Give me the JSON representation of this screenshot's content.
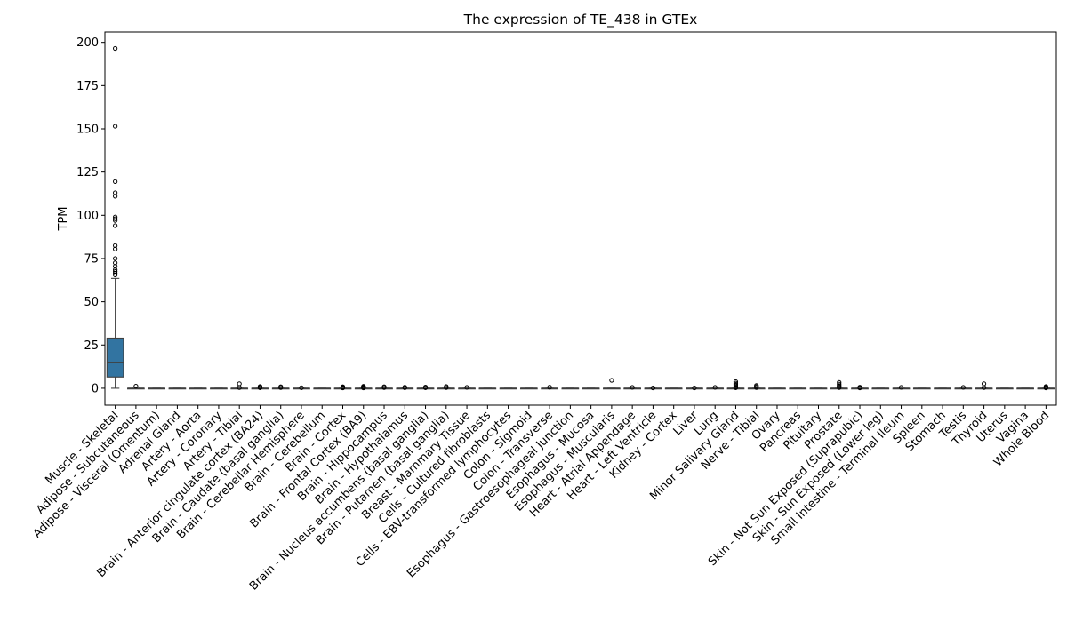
{
  "chart_data": {
    "type": "box",
    "title": "The expression of TE_438 in GTEx",
    "xlabel": "",
    "ylabel": "TPM",
    "ylim": [
      -9.8,
      206
    ],
    "yticks": [
      0,
      25,
      50,
      75,
      100,
      125,
      150,
      175,
      200
    ],
    "grid": false,
    "legend": "none",
    "box_color": "#3274a1",
    "categories": [
      "Muscle - Skeletal",
      "Adipose - Subcutaneous",
      "Adipose - Visceral (Omentum)",
      "Adrenal Gland",
      "Artery - Aorta",
      "Artery - Coronary",
      "Artery - Tibial",
      "Brain - Anterior cingulate cortex (BA24)",
      "Brain - Caudate (basal ganglia)",
      "Brain - Cerebellar Hemisphere",
      "Brain - Cerebellum",
      "Brain - Cortex",
      "Brain - Frontal Cortex (BA9)",
      "Brain - Hippocampus",
      "Brain - Hypothalamus",
      "Brain - Nucleus accumbens (basal ganglia)",
      "Brain - Putamen (basal ganglia)",
      "Breast - Mammary Tissue",
      "Cells - Cultured fibroblasts",
      "Cells - EBV-transformed lymphocytes",
      "Colon - Sigmoid",
      "Colon - Transverse",
      "Esophagus - Gastroesophageal Junction",
      "Esophagus - Mucosa",
      "Esophagus - Muscularis",
      "Heart - Atrial Appendage",
      "Heart - Left Ventricle",
      "Kidney - Cortex",
      "Liver",
      "Lung",
      "Minor Salivary Gland",
      "Nerve - Tibial",
      "Ovary",
      "Pancreas",
      "Pituitary",
      "Prostate",
      "Skin - Not Sun Exposed (Suprapubic)",
      "Skin - Sun Exposed (Lower leg)",
      "Small Intestine - Terminal Ileum",
      "Spleen",
      "Stomach",
      "Testis",
      "Thyroid",
      "Uterus",
      "Vagina",
      "Whole Blood"
    ],
    "boxes": [
      {
        "min": 0,
        "q1": 6.5,
        "median": 15,
        "q3": 29,
        "max": 63.5,
        "outliers": [
          65.5,
          66.5,
          67.5,
          68.5,
          70.5,
          72.5,
          75,
          80.5,
          82.5,
          94,
          97,
          98,
          99,
          111,
          113,
          119.5,
          151.5,
          196.5
        ]
      },
      {
        "min": 0,
        "q1": 0,
        "median": 0,
        "q3": 0,
        "max": 0,
        "outliers": [
          1.2
        ]
      },
      {
        "min": 0,
        "q1": 0,
        "median": 0,
        "q3": 0,
        "max": 0,
        "outliers": []
      },
      {
        "min": 0,
        "q1": 0,
        "median": 0,
        "q3": 0,
        "max": 0,
        "outliers": []
      },
      {
        "min": 0,
        "q1": 0,
        "median": 0,
        "q3": 0,
        "max": 0,
        "outliers": []
      },
      {
        "min": 0,
        "q1": 0,
        "median": 0,
        "q3": 0,
        "max": 0,
        "outliers": []
      },
      {
        "min": 0,
        "q1": 0,
        "median": 0,
        "q3": 0,
        "max": 0,
        "outliers": [
          0.4,
          2.6
        ]
      },
      {
        "min": 0,
        "q1": 0,
        "median": 0,
        "q3": 0,
        "max": 0,
        "outliers": [
          0.3,
          0.6,
          1.0
        ]
      },
      {
        "min": 0,
        "q1": 0,
        "median": 0,
        "q3": 0,
        "max": 0,
        "outliers": [
          0.4,
          0.9
        ]
      },
      {
        "min": 0,
        "q1": 0,
        "median": 0,
        "q3": 0,
        "max": 0,
        "outliers": [
          0.3
        ]
      },
      {
        "min": 0,
        "q1": 0,
        "median": 0,
        "q3": 0,
        "max": 0,
        "outliers": []
      },
      {
        "min": 0,
        "q1": 0,
        "median": 0,
        "q3": 0,
        "max": 0,
        "outliers": [
          0.2,
          0.5,
          0.9
        ]
      },
      {
        "min": 0,
        "q1": 0,
        "median": 0,
        "q3": 0,
        "max": 0,
        "outliers": [
          0.2,
          0.5,
          0.8,
          1.1
        ]
      },
      {
        "min": 0,
        "q1": 0,
        "median": 0,
        "q3": 0,
        "max": 0,
        "outliers": [
          0.4,
          0.9
        ]
      },
      {
        "min": 0,
        "q1": 0,
        "median": 0,
        "q3": 0,
        "max": 0,
        "outliers": [
          0.3,
          0.6
        ]
      },
      {
        "min": 0,
        "q1": 0,
        "median": 0,
        "q3": 0,
        "max": 0,
        "outliers": [
          0.3,
          0.7
        ]
      },
      {
        "min": 0,
        "q1": 0,
        "median": 0,
        "q3": 0,
        "max": 0,
        "outliers": [
          0.4,
          1.0
        ]
      },
      {
        "min": 0,
        "q1": 0,
        "median": 0,
        "q3": 0,
        "max": 0,
        "outliers": [
          0.5
        ]
      },
      {
        "min": 0,
        "q1": 0,
        "median": 0,
        "q3": 0,
        "max": 0,
        "outliers": []
      },
      {
        "min": 0,
        "q1": 0,
        "median": 0,
        "q3": 0,
        "max": 0,
        "outliers": []
      },
      {
        "min": 0,
        "q1": 0,
        "median": 0,
        "q3": 0,
        "max": 0,
        "outliers": []
      },
      {
        "min": 0,
        "q1": 0,
        "median": 0,
        "q3": 0,
        "max": 0,
        "outliers": [
          0.6
        ]
      },
      {
        "min": 0,
        "q1": 0,
        "median": 0,
        "q3": 0,
        "max": 0,
        "outliers": []
      },
      {
        "min": 0,
        "q1": 0,
        "median": 0,
        "q3": 0,
        "max": 0,
        "outliers": []
      },
      {
        "min": 0,
        "q1": 0,
        "median": 0,
        "q3": 0,
        "max": 0,
        "outliers": [
          4.6
        ]
      },
      {
        "min": 0,
        "q1": 0,
        "median": 0,
        "q3": 0,
        "max": 0,
        "outliers": [
          0.5
        ]
      },
      {
        "min": 0,
        "q1": 0,
        "median": 0,
        "q3": 0,
        "max": 0,
        "outliers": [
          0.2
        ]
      },
      {
        "min": 0,
        "q1": 0,
        "median": 0,
        "q3": 0,
        "max": 0,
        "outliers": []
      },
      {
        "min": 0,
        "q1": 0,
        "median": 0,
        "q3": 0,
        "max": 0,
        "outliers": [
          0.2
        ]
      },
      {
        "min": 0,
        "q1": 0,
        "median": 0,
        "q3": 0,
        "max": 0,
        "outliers": [
          0.5
        ]
      },
      {
        "min": 0,
        "q1": 0,
        "median": 0,
        "q3": 0,
        "max": 0,
        "outliers": [
          0.3,
          0.8,
          1.5,
          2.3,
          3.0,
          3.8
        ]
      },
      {
        "min": 0,
        "q1": 0,
        "median": 0,
        "q3": 0,
        "max": 0,
        "outliers": [
          0.4,
          1.0,
          1.6
        ]
      },
      {
        "min": 0,
        "q1": 0,
        "median": 0,
        "q3": 0,
        "max": 0,
        "outliers": []
      },
      {
        "min": 0,
        "q1": 0,
        "median": 0,
        "q3": 0,
        "max": 0,
        "outliers": []
      },
      {
        "min": 0,
        "q1": 0,
        "median": 0,
        "q3": 0,
        "max": 0,
        "outliers": []
      },
      {
        "min": 0,
        "q1": 0,
        "median": 0,
        "q3": 0,
        "max": 0,
        "outliers": [
          0.4,
          1.0,
          1.6,
          2.4,
          3.4
        ]
      },
      {
        "min": 0,
        "q1": 0,
        "median": 0,
        "q3": 0,
        "max": 0,
        "outliers": [
          0.2,
          0.6
        ]
      },
      {
        "min": 0,
        "q1": 0,
        "median": 0,
        "q3": 0,
        "max": 0,
        "outliers": []
      },
      {
        "min": 0,
        "q1": 0,
        "median": 0,
        "q3": 0,
        "max": 0,
        "outliers": [
          0.5
        ]
      },
      {
        "min": 0,
        "q1": 0,
        "median": 0,
        "q3": 0,
        "max": 0,
        "outliers": []
      },
      {
        "min": 0,
        "q1": 0,
        "median": 0,
        "q3": 0,
        "max": 0,
        "outliers": []
      },
      {
        "min": 0,
        "q1": 0,
        "median": 0,
        "q3": 0,
        "max": 0,
        "outliers": [
          0.5
        ]
      },
      {
        "min": 0,
        "q1": 0,
        "median": 0,
        "q3": 0,
        "max": 0,
        "outliers": [
          0.4,
          2.6
        ]
      },
      {
        "min": 0,
        "q1": 0,
        "median": 0,
        "q3": 0,
        "max": 0,
        "outliers": []
      },
      {
        "min": 0,
        "q1": 0,
        "median": 0,
        "q3": 0,
        "max": 0,
        "outliers": []
      },
      {
        "min": 0,
        "q1": 0,
        "median": 0,
        "q3": 0,
        "max": 0,
        "outliers": [
          0.2,
          0.6,
          1.0
        ]
      }
    ]
  }
}
